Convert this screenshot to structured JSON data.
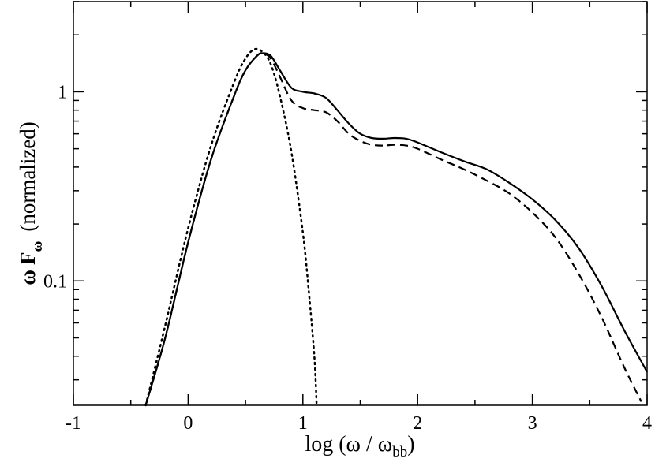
{
  "chart_data": {
    "type": "line",
    "xlabel": {
      "prefix": "log (ω / ω",
      "sub": "bb",
      "suffix": ")"
    },
    "ylabel": {
      "omega": "ω",
      "f": "F",
      "sub": "ω",
      "rest": "(normalized)"
    },
    "xlim": [
      -1,
      4
    ],
    "ylim": [
      0.022,
      3.0
    ],
    "yscale": "log",
    "grid": false,
    "legend": "none",
    "x_ticks": [
      {
        "value": -1,
        "label": "-1"
      },
      {
        "value": 0,
        "label": "0"
      },
      {
        "value": 1,
        "label": "1"
      },
      {
        "value": 2,
        "label": "2"
      },
      {
        "value": 3,
        "label": "3"
      },
      {
        "value": 4,
        "label": "4"
      }
    ],
    "x_minor_ticks": [
      -0.5,
      0.5,
      1.5,
      2.5,
      3.5
    ],
    "y_ticks": [
      {
        "value": 0.1,
        "label": "0.1"
      },
      {
        "value": 1,
        "label": "1"
      }
    ],
    "y_minor_ticks": [
      0.03,
      0.04,
      0.05,
      0.06,
      0.07,
      0.08,
      0.09,
      0.2,
      0.3,
      0.4,
      0.5,
      0.6,
      0.7,
      0.8,
      0.9,
      2,
      3
    ],
    "series": [
      {
        "style": "solid",
        "x": [
          -0.37,
          -0.2,
          0.0,
          0.2,
          0.4,
          0.5,
          0.6,
          0.65,
          0.72,
          0.8,
          0.9,
          1.0,
          1.1,
          1.2,
          1.3,
          1.4,
          1.5,
          1.6,
          1.7,
          1.8,
          1.9,
          2.0,
          2.2,
          2.4,
          2.6,
          2.8,
          3.0,
          3.2,
          3.4,
          3.6,
          3.8,
          4.0
        ],
        "y": [
          0.022,
          0.05,
          0.16,
          0.44,
          0.95,
          1.3,
          1.55,
          1.6,
          1.55,
          1.3,
          1.05,
          1.0,
          0.98,
          0.93,
          0.8,
          0.68,
          0.6,
          0.57,
          0.565,
          0.57,
          0.565,
          0.54,
          0.48,
          0.43,
          0.39,
          0.33,
          0.27,
          0.21,
          0.15,
          0.095,
          0.055,
          0.033
        ]
      },
      {
        "style": "dashed",
        "x": [
          -0.37,
          -0.2,
          0.0,
          0.2,
          0.4,
          0.5,
          0.6,
          0.65,
          0.72,
          0.8,
          0.9,
          1.0,
          1.1,
          1.2,
          1.3,
          1.4,
          1.5,
          1.6,
          1.7,
          1.8,
          1.9,
          2.0,
          2.2,
          2.4,
          2.6,
          2.8,
          3.0,
          3.2,
          3.4,
          3.6,
          3.8,
          3.95
        ],
        "y": [
          0.022,
          0.05,
          0.16,
          0.44,
          0.95,
          1.3,
          1.55,
          1.6,
          1.5,
          1.2,
          0.9,
          0.82,
          0.8,
          0.78,
          0.7,
          0.6,
          0.55,
          0.525,
          0.52,
          0.525,
          0.52,
          0.5,
          0.44,
          0.39,
          0.34,
          0.29,
          0.23,
          0.17,
          0.11,
          0.065,
          0.035,
          0.023
        ]
      },
      {
        "style": "dotted",
        "x": [
          -0.37,
          -0.2,
          0.0,
          0.2,
          0.4,
          0.5,
          0.58,
          0.65,
          0.72,
          0.8,
          0.9,
          1.0,
          1.05,
          1.1,
          1.12
        ],
        "y": [
          0.022,
          0.058,
          0.19,
          0.52,
          1.12,
          1.5,
          1.68,
          1.62,
          1.4,
          0.95,
          0.48,
          0.18,
          0.09,
          0.04,
          0.022
        ]
      }
    ]
  }
}
